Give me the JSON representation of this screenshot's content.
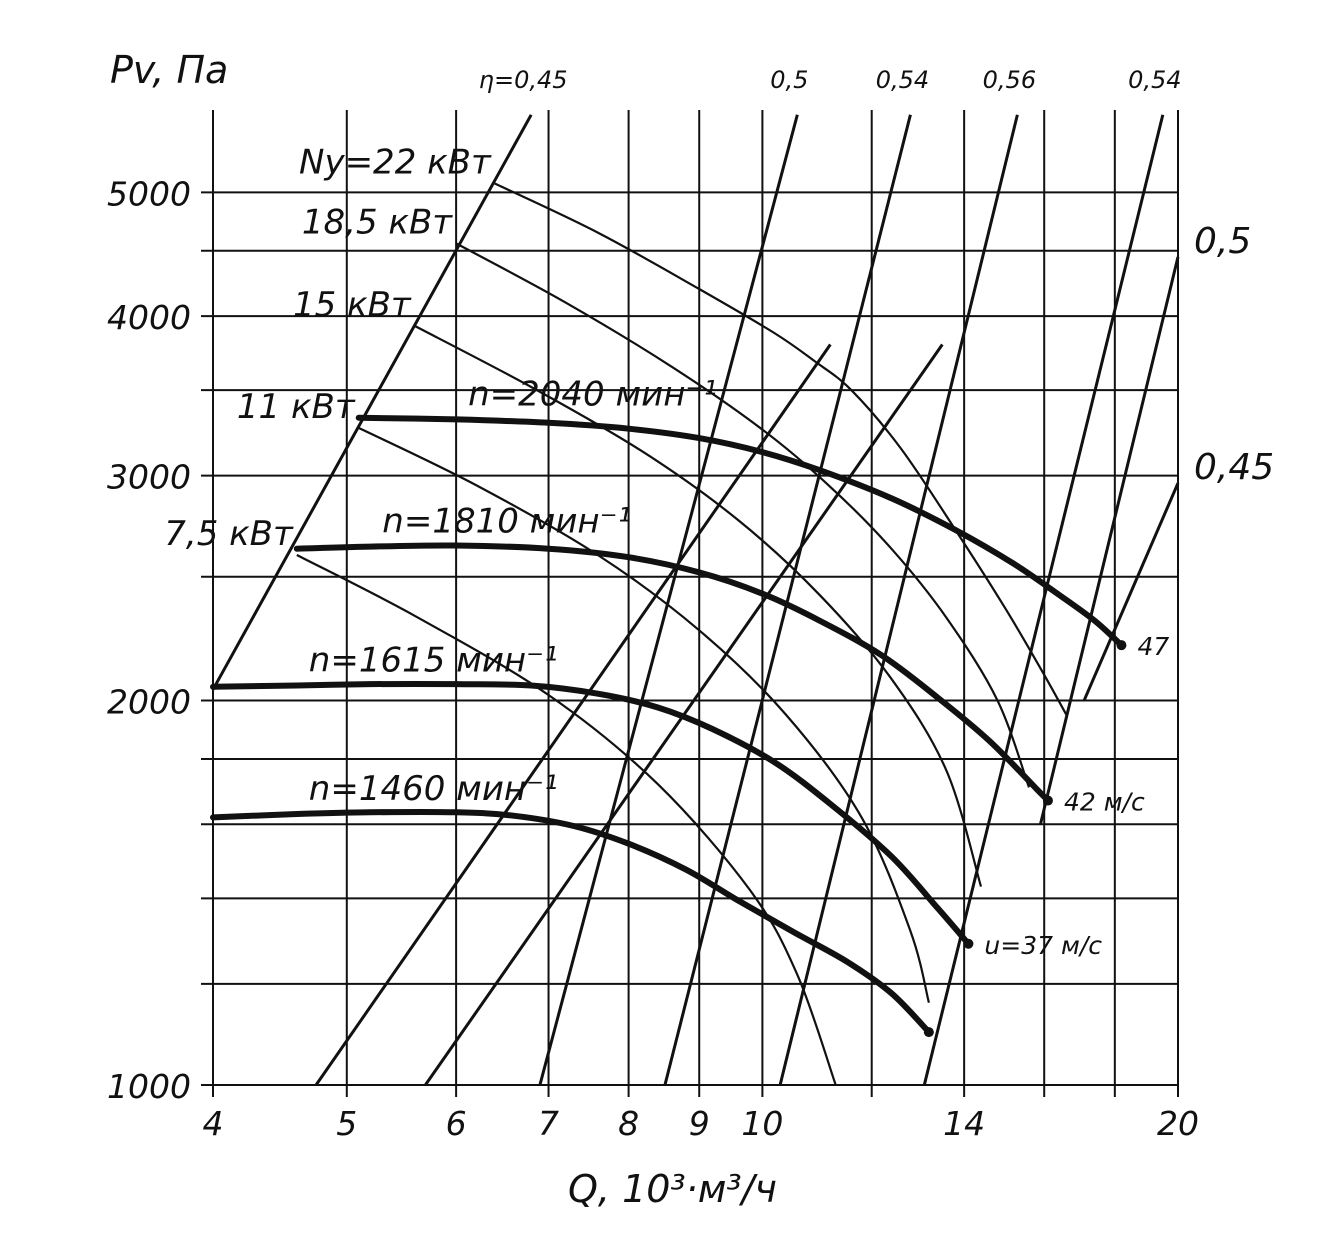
{
  "chart_data": {
    "type": "line",
    "title": "",
    "xlabel": "Q, 10³·м³/ч",
    "ylabel": "Pv, Па",
    "xscale": "log",
    "yscale": "log",
    "xlim": [
      4,
      20
    ],
    "ylim": [
      1000,
      5800
    ],
    "grid": true,
    "x_ticks": [
      {
        "v": 4,
        "label": "4"
      },
      {
        "v": 5,
        "label": "5"
      },
      {
        "v": 6,
        "label": "6"
      },
      {
        "v": 7,
        "label": "7"
      },
      {
        "v": 8,
        "label": "8"
      },
      {
        "v": 9,
        "label": "9"
      },
      {
        "v": 10,
        "label": "10"
      },
      {
        "v": 12,
        "label": ""
      },
      {
        "v": 14,
        "label": "14"
      },
      {
        "v": 16,
        "label": ""
      },
      {
        "v": 18,
        "label": ""
      },
      {
        "v": 20,
        "label": "20"
      }
    ],
    "y_ticks": [
      {
        "v": 1000,
        "label": "1000"
      },
      {
        "v": 1200,
        "label": ""
      },
      {
        "v": 1400,
        "label": ""
      },
      {
        "v": 1600,
        "label": ""
      },
      {
        "v": 1800,
        "label": ""
      },
      {
        "v": 2000,
        "label": "2000"
      },
      {
        "v": 2500,
        "label": ""
      },
      {
        "v": 3000,
        "label": "3000"
      },
      {
        "v": 3500,
        "label": ""
      },
      {
        "v": 4000,
        "label": "4000"
      },
      {
        "v": 4500,
        "label": ""
      },
      {
        "v": 5000,
        "label": "5000"
      }
    ],
    "rpm_series": [
      {
        "name": "n=1460 мин⁻¹",
        "q": [
          4,
          4.6,
          5.2,
          6,
          6.6,
          7.3,
          8,
          8.8,
          9.6,
          10.5,
          11.5,
          12.4,
          13.2
        ],
        "p": [
          1620,
          1630,
          1635,
          1635,
          1625,
          1595,
          1545,
          1475,
          1395,
          1320,
          1250,
          1180,
          1100
        ]
      },
      {
        "name": "n=1615 мин⁻¹",
        "q": [
          4,
          4.6,
          5.2,
          6,
          6.8,
          7.6,
          8.4,
          9.2,
          10.2,
          11.2,
          12.4,
          13.4,
          14.1
        ],
        "p": [
          2050,
          2055,
          2060,
          2060,
          2055,
          2025,
          1975,
          1900,
          1790,
          1660,
          1510,
          1375,
          1290
        ]
      },
      {
        "name": "n=1810 мин⁻¹",
        "q": [
          4.6,
          5.2,
          6,
          7,
          8,
          9,
          10,
          11,
          12.2,
          13.4,
          14.6,
          15.8,
          16.1
        ],
        "p": [
          2630,
          2640,
          2645,
          2630,
          2590,
          2520,
          2425,
          2310,
          2170,
          2010,
          1860,
          1705,
          1670
        ]
      },
      {
        "name": "n=2040 мин⁻¹",
        "q": [
          5.1,
          6,
          7,
          8,
          9,
          10,
          11,
          12.4,
          13.8,
          15.2,
          16.4,
          17.4,
          18.2
        ],
        "p": [
          3330,
          3320,
          3300,
          3265,
          3210,
          3130,
          3030,
          2880,
          2720,
          2560,
          2420,
          2310,
          2210
        ]
      }
    ],
    "power_series": [
      {
        "name": "Ny=22 кВт",
        "q": [
          6.4,
          7.6,
          9,
          10.2,
          10.9,
          11.6,
          12.6,
          13.8,
          15,
          15.9,
          16.6
        ],
        "p": [
          5080,
          4650,
          4200,
          3880,
          3690,
          3500,
          3150,
          2720,
          2360,
          2120,
          1950
        ]
      },
      {
        "name": "18,5 кВт",
        "q": [
          6,
          7.2,
          8.6,
          10,
          11.2,
          12.4,
          13.6,
          14.8,
          15.6
        ],
        "p": [
          4560,
          4100,
          3650,
          3260,
          2940,
          2630,
          2320,
          2000,
          1710
        ]
      },
      {
        "name": "15 кВт",
        "q": [
          5.6,
          6.8,
          8.2,
          9.6,
          11,
          12.4,
          13.6,
          14.4
        ],
        "p": [
          3930,
          3520,
          3130,
          2770,
          2420,
          2080,
          1760,
          1430
        ]
      },
      {
        "name": "11 кВт",
        "q": [
          5.1,
          6.2,
          7.6,
          9,
          10.4,
          11.8,
          12.8,
          13.2
        ],
        "p": [
          3270,
          2950,
          2600,
          2270,
          1950,
          1620,
          1320,
          1160
        ]
      },
      {
        "name": "7,5 кВт",
        "q": [
          4.6,
          5.6,
          7,
          8.4,
          9.8,
          10.6,
          11.3
        ],
        "p": [
          2600,
          2330,
          2020,
          1720,
          1420,
          1220,
          1000
        ]
      }
    ],
    "efficiency_lines": [
      {
        "label": "η=0,45",
        "q": [
          4,
          6.8
        ],
        "p": [
          2040,
          5750
        ]
      },
      {
        "label": "",
        "q": [
          4.75,
          11.2
        ],
        "p": [
          1000,
          3800
        ]
      },
      {
        "label": "",
        "q": [
          5.7,
          13.5
        ],
        "p": [
          1000,
          3800
        ]
      },
      {
        "label": "0,5",
        "q": [
          6.9,
          10.6
        ],
        "p": [
          1000,
          5750
        ]
      },
      {
        "label": "0,54",
        "q": [
          8.5,
          12.8
        ],
        "p": [
          1000,
          5750
        ]
      },
      {
        "label": "0,56",
        "q": [
          10.3,
          15.3
        ],
        "p": [
          1000,
          5750
        ]
      },
      {
        "label": "0,54",
        "q": [
          13.1,
          19.5
        ],
        "p": [
          1000,
          5750
        ]
      }
    ],
    "right_labels": [
      {
        "text": "0,5",
        "q": [
          15.9,
          20
        ],
        "p": [
          1600,
          4450
        ]
      },
      {
        "text": "0,45",
        "q": [
          17.1,
          20
        ],
        "p": [
          2000,
          2960
        ]
      }
    ],
    "speed_labels": [
      {
        "text": "u=37 м/с",
        "q": 14.1,
        "p": 1290
      },
      {
        "text": "42 м/с",
        "q": 16.1,
        "p": 1670
      },
      {
        "text": "47",
        "q": 18.2,
        "p": 2210
      }
    ]
  }
}
